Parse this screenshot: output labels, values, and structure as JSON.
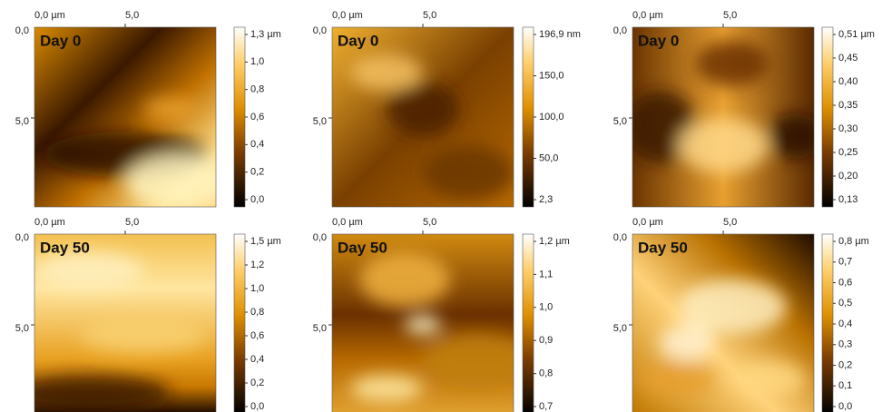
{
  "panels": [
    {
      "label": "Day 0",
      "x_ticks": [
        "0,0 µm",
        "5,0"
      ],
      "y_ticks": [
        "0,0",
        "5,0"
      ],
      "colorbar": [
        "1,3 µm",
        "1,0",
        "0,8",
        "0,6",
        "0,4",
        "0,2",
        "0,0"
      ]
    },
    {
      "label": "Day 0",
      "x_ticks": [
        "0,0 µm",
        "5,0"
      ],
      "y_ticks": [
        "0,0",
        "5,0"
      ],
      "colorbar": [
        "196,9 nm",
        "150,0",
        "100,0",
        "50,0",
        "2,3"
      ]
    },
    {
      "label": "Day 0",
      "x_ticks": [
        "0,0 µm",
        "5,0"
      ],
      "y_ticks": [
        "0,0",
        "5,0"
      ],
      "colorbar": [
        "0,51 µm",
        "0,45",
        "0,40",
        "0,35",
        "0,30",
        "0,25",
        "0,20",
        "0,13"
      ]
    },
    {
      "label": "Day 50",
      "x_ticks": [
        "0,0 µm",
        "5,0"
      ],
      "y_ticks": [
        "0,0",
        "5,0"
      ],
      "colorbar": [
        "1,5 µm",
        "1,2",
        "1,0",
        "0,8",
        "0,6",
        "0,4",
        "0,2",
        "0,0"
      ]
    },
    {
      "label": "Day 50",
      "x_ticks": [
        "0,0 µm",
        "5,0"
      ],
      "y_ticks": [
        "0,0",
        "5,0"
      ],
      "colorbar": [
        "1,2 µm",
        "1,1",
        "1,0",
        "0,9",
        "0,8",
        "0,7"
      ]
    },
    {
      "label": "Day 50",
      "x_ticks": [
        "0,0 µm",
        "5,0"
      ],
      "y_ticks": [
        "0,0",
        "5,0"
      ],
      "colorbar": [
        "0,8 µm",
        "0,7",
        "0,6",
        "0,5",
        "0,4",
        "0,3",
        "0,2",
        "0,1",
        "0,0"
      ]
    }
  ]
}
